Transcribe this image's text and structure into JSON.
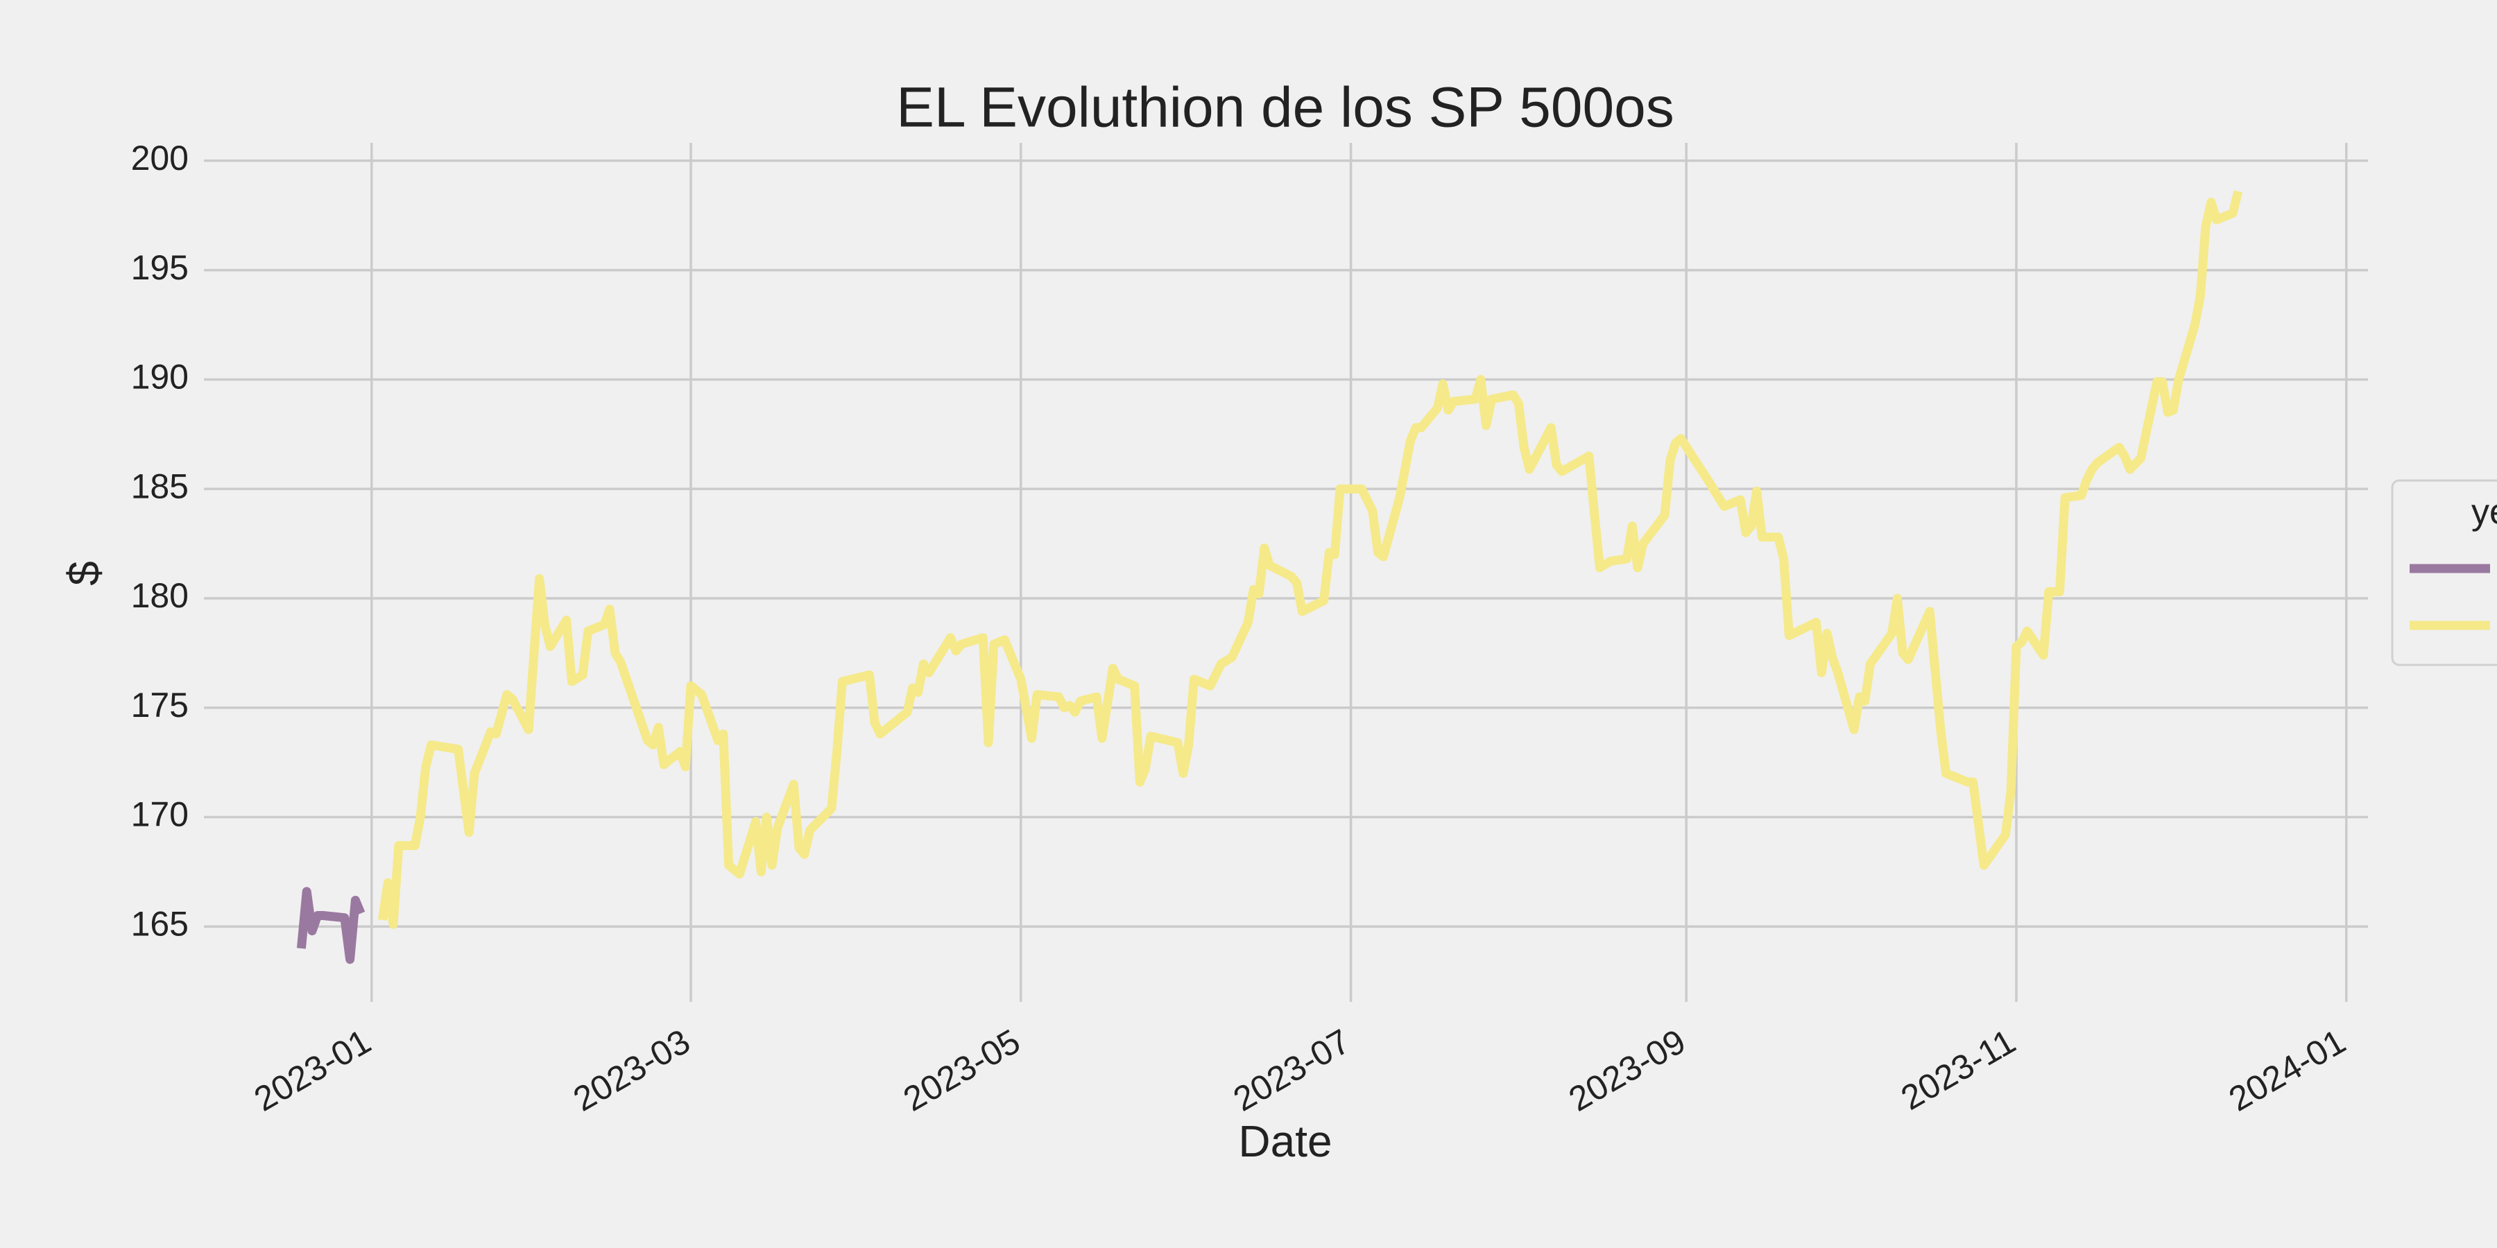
{
  "chart_data": {
    "type": "line",
    "title": "EL Evoluthion de los SP 500os",
    "x_label": "Date",
    "y_label": "$",
    "legend_title": "ye",
    "grid": true,
    "xlim": [
      "2022-12-01",
      "2024-01-05"
    ],
    "ylim": [
      162,
      200.5
    ],
    "xticks": [
      "2023-01",
      "2023-03",
      "2023-05",
      "2023-07",
      "2023-09",
      "2023-11",
      "2024-01"
    ],
    "yticks": [
      165,
      170,
      175,
      180,
      185,
      190,
      195,
      200
    ],
    "series": [
      {
        "color": "#9a79a0",
        "x": [
          "2022-12-19",
          "2022-12-20",
          "2022-12-21",
          "2022-12-22",
          "2022-12-23",
          "2022-12-27",
          "2022-12-28",
          "2022-12-29",
          "2022-12-30"
        ],
        "values": [
          164.0,
          166.6,
          164.8,
          165.5,
          165.5,
          165.4,
          163.5,
          166.2,
          165.6
        ]
      },
      {
        "color": "#f5e98a",
        "x": [
          "2023-01-03",
          "2023-01-04",
          "2023-01-05",
          "2023-01-06",
          "2023-01-09",
          "2023-01-10",
          "2023-01-11",
          "2023-01-12",
          "2023-01-17",
          "2023-01-19",
          "2023-01-20",
          "2023-01-23",
          "2023-01-24",
          "2023-01-26",
          "2023-01-27",
          "2023-01-30",
          "2023-02-01",
          "2023-02-02",
          "2023-02-03",
          "2023-02-06",
          "2023-02-07",
          "2023-02-09",
          "2023-02-10",
          "2023-02-13",
          "2023-02-14",
          "2023-02-15",
          "2023-02-16",
          "2023-02-21",
          "2023-02-22",
          "2023-02-23",
          "2023-02-24",
          "2023-02-27",
          "2023-02-28",
          "2023-03-01",
          "2023-03-03",
          "2023-03-06",
          "2023-03-07",
          "2023-03-08",
          "2023-03-10",
          "2023-03-13",
          "2023-03-14",
          "2023-03-15",
          "2023-03-16",
          "2023-03-17",
          "2023-03-20",
          "2023-03-21",
          "2023-03-22",
          "2023-03-23",
          "2023-03-27",
          "2023-03-28",
          "2023-03-29",
          "2023-04-03",
          "2023-04-04",
          "2023-04-05",
          "2023-04-10",
          "2023-04-11",
          "2023-04-12",
          "2023-04-13",
          "2023-04-14",
          "2023-04-18",
          "2023-04-19",
          "2023-04-20",
          "2023-04-24",
          "2023-04-25",
          "2023-04-26",
          "2023-04-28",
          "2023-05-01",
          "2023-05-03",
          "2023-05-04",
          "2023-05-08",
          "2023-05-09",
          "2023-05-10",
          "2023-05-11",
          "2023-05-12",
          "2023-05-15",
          "2023-05-16",
          "2023-05-18",
          "2023-05-19",
          "2023-05-22",
          "2023-05-23",
          "2023-05-24",
          "2023-05-25",
          "2023-05-30",
          "2023-05-31",
          "2023-06-01",
          "2023-06-02",
          "2023-06-05",
          "2023-06-07",
          "2023-06-09",
          "2023-06-12",
          "2023-06-13",
          "2023-06-14",
          "2023-06-15",
          "2023-06-16",
          "2023-06-20",
          "2023-06-21",
          "2023-06-22",
          "2023-06-26",
          "2023-06-27",
          "2023-06-28",
          "2023-06-29",
          "2023-07-03",
          "2023-07-05",
          "2023-07-06",
          "2023-07-07",
          "2023-07-10",
          "2023-07-12",
          "2023-07-13",
          "2023-07-14",
          "2023-07-17",
          "2023-07-18",
          "2023-07-19",
          "2023-07-20",
          "2023-07-24",
          "2023-07-25",
          "2023-07-26",
          "2023-07-27",
          "2023-07-31",
          "2023-08-01",
          "2023-08-02",
          "2023-08-03",
          "2023-08-07",
          "2023-08-08",
          "2023-08-09",
          "2023-08-14",
          "2023-08-15",
          "2023-08-16",
          "2023-08-18",
          "2023-08-21",
          "2023-08-22",
          "2023-08-23",
          "2023-08-24",
          "2023-08-28",
          "2023-08-29",
          "2023-08-30",
          "2023-08-31",
          "2023-09-05",
          "2023-09-06",
          "2023-09-08",
          "2023-09-11",
          "2023-09-12",
          "2023-09-13",
          "2023-09-14",
          "2023-09-15",
          "2023-09-18",
          "2023-09-19",
          "2023-09-20",
          "2023-09-25",
          "2023-09-26",
          "2023-09-27",
          "2023-09-28",
          "2023-09-29",
          "2023-10-02",
          "2023-10-03",
          "2023-10-04",
          "2023-10-05",
          "2023-10-09",
          "2023-10-10",
          "2023-10-11",
          "2023-10-12",
          "2023-10-16",
          "2023-10-18",
          "2023-10-19",
          "2023-10-23",
          "2023-10-24",
          "2023-10-25",
          "2023-10-26",
          "2023-10-30",
          "2023-10-31",
          "2023-11-01",
          "2023-11-02",
          "2023-11-03",
          "2023-11-06",
          "2023-11-07",
          "2023-11-09",
          "2023-11-10",
          "2023-11-13",
          "2023-11-14",
          "2023-11-15",
          "2023-11-16",
          "2023-11-20",
          "2023-11-21",
          "2023-11-22",
          "2023-11-24",
          "2023-11-27",
          "2023-11-28",
          "2023-11-29",
          "2023-11-30",
          "2023-12-01",
          "2023-12-04",
          "2023-12-05",
          "2023-12-06",
          "2023-12-07",
          "2023-12-08",
          "2023-12-11",
          "2023-12-12"
        ],
        "values": [
          165.3,
          167.0,
          165.1,
          168.7,
          168.7,
          170.0,
          172.3,
          173.3,
          173.1,
          169.3,
          172.0,
          173.9,
          173.8,
          175.6,
          175.4,
          174.0,
          180.9,
          178.8,
          177.8,
          179.0,
          176.2,
          176.5,
          178.5,
          178.8,
          179.5,
          177.5,
          177.1,
          173.5,
          173.3,
          174.1,
          172.4,
          173.0,
          172.3,
          176.0,
          175.6,
          173.5,
          173.8,
          167.8,
          167.4,
          169.8,
          167.5,
          170.0,
          167.8,
          169.5,
          171.5,
          168.6,
          168.3,
          169.4,
          170.4,
          173.0,
          176.2,
          176.5,
          174.3,
          173.8,
          174.8,
          175.9,
          175.7,
          177.0,
          176.6,
          178.2,
          177.6,
          177.9,
          178.2,
          173.4,
          177.9,
          178.1,
          176.3,
          173.6,
          175.6,
          175.5,
          175.0,
          175.1,
          174.8,
          175.3,
          175.5,
          173.6,
          176.8,
          176.3,
          176.0,
          171.6,
          172.2,
          173.7,
          173.4,
          172.0,
          173.3,
          176.3,
          176.0,
          177.0,
          177.3,
          178.9,
          180.4,
          180.2,
          182.3,
          181.5,
          181.0,
          180.7,
          179.4,
          179.9,
          182.1,
          182.0,
          185.0,
          185.0,
          184.0,
          182.1,
          181.9,
          184.6,
          187.2,
          187.8,
          187.8,
          188.7,
          189.8,
          188.6,
          189.0,
          189.1,
          190.0,
          187.9,
          189.1,
          189.3,
          188.9,
          186.9,
          185.9,
          187.8,
          186.1,
          185.8,
          186.5,
          183.9,
          181.4,
          181.7,
          181.8,
          183.3,
          181.4,
          182.5,
          183.8,
          186.3,
          187.1,
          187.3,
          185.4,
          185.0,
          184.2,
          184.5,
          183.0,
          183.3,
          184.9,
          182.8,
          182.8,
          181.8,
          178.3,
          178.9,
          176.6,
          178.4,
          177.3,
          176.6,
          174.0,
          175.5,
          175.3,
          177.0,
          178.4,
          180.0,
          177.5,
          177.2,
          179.4,
          174.0,
          172.0,
          171.6,
          171.6,
          169.7,
          167.8,
          169.2,
          171.2,
          177.8,
          178.0,
          178.5,
          177.4,
          180.3,
          180.3,
          184.6,
          184.7,
          185.4,
          185.9,
          186.2,
          186.9,
          186.5,
          185.9,
          186.4,
          189.9,
          189.9,
          188.5,
          188.6,
          190.0,
          192.5,
          193.8,
          197.0,
          198.1,
          197.3,
          197.6,
          198.6
        ]
      }
    ]
  }
}
